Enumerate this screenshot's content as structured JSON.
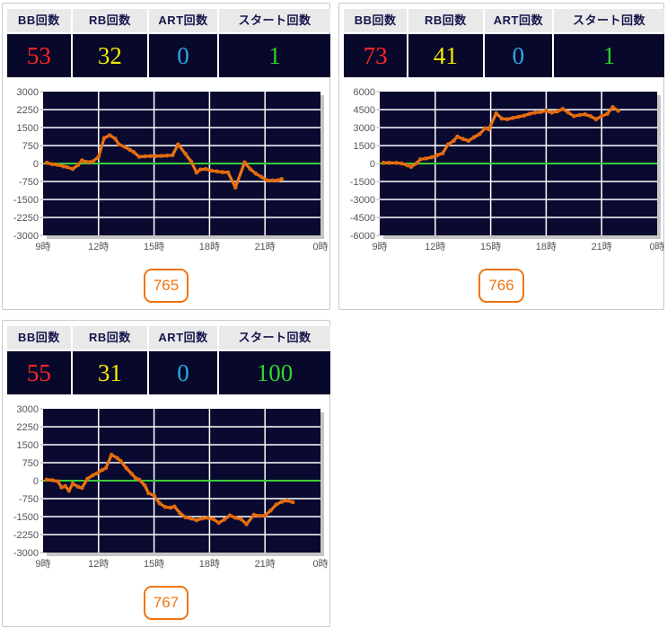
{
  "colors": {
    "bb": "#ff2626",
    "rb": "#f6ea00",
    "art": "#2aa9e2",
    "start": "#2fd42f",
    "badge": "#ef7412",
    "header_text": "#15154d",
    "table_bg": "#08082a"
  },
  "stats_headers": [
    "BB回数",
    "RB回数",
    "ART回数",
    "スタート回数"
  ],
  "panels": [
    {
      "machine_no": "765",
      "bb": "53",
      "rb": "32",
      "art": "0",
      "start": "1"
    },
    {
      "machine_no": "766",
      "bb": "73",
      "rb": "41",
      "art": "0",
      "start": "1"
    },
    {
      "machine_no": "767",
      "bb": "55",
      "rb": "31",
      "art": "0",
      "start": "100"
    }
  ],
  "chart_style": {
    "bg": "#0a0a30",
    "grid": "#ffffff",
    "zero": "#3ace3a",
    "line": "#ef7412",
    "marker": "#e2680d",
    "shadow": "#c6c6c6",
    "tick": "#aaaaaa"
  },
  "chart_data": [
    {
      "type": "line",
      "machine_no": "765",
      "x_range": [
        9,
        24
      ],
      "x_tick_hours": [
        9,
        12,
        15,
        18,
        21,
        24
      ],
      "x_tick_labels": [
        "9時",
        "12時",
        "15時",
        "18時",
        "21時",
        "0時"
      ],
      "ylim": [
        -3000,
        3000
      ],
      "y_ticks": [
        3000,
        2250,
        1500,
        750,
        0,
        -750,
        -1500,
        -2250,
        -3000
      ],
      "grid": true,
      "points": [
        [
          9.2,
          30
        ],
        [
          9.5,
          -30
        ],
        [
          9.8,
          -60
        ],
        [
          10.1,
          -120
        ],
        [
          10.3,
          -150
        ],
        [
          10.6,
          -230
        ],
        [
          10.9,
          -60
        ],
        [
          11.1,
          130
        ],
        [
          11.4,
          60
        ],
        [
          11.7,
          90
        ],
        [
          12.0,
          280
        ],
        [
          12.3,
          1060
        ],
        [
          12.6,
          1180
        ],
        [
          12.9,
          1040
        ],
        [
          13.1,
          800
        ],
        [
          13.4,
          700
        ],
        [
          13.7,
          570
        ],
        [
          13.9,
          480
        ],
        [
          14.2,
          280
        ],
        [
          14.5,
          300
        ],
        [
          14.8,
          310
        ],
        [
          15.1,
          310
        ],
        [
          15.4,
          320
        ],
        [
          15.7,
          330
        ],
        [
          16.0,
          350
        ],
        [
          16.3,
          800
        ],
        [
          16.7,
          400
        ],
        [
          17.0,
          90
        ],
        [
          17.3,
          -380
        ],
        [
          17.5,
          -250
        ],
        [
          17.8,
          -230
        ],
        [
          18.1,
          -300
        ],
        [
          18.4,
          -330
        ],
        [
          18.7,
          -360
        ],
        [
          19.0,
          -370
        ],
        [
          19.4,
          -1000
        ],
        [
          19.9,
          50
        ],
        [
          20.2,
          -230
        ],
        [
          20.5,
          -420
        ],
        [
          20.8,
          -560
        ],
        [
          21.1,
          -700
        ],
        [
          21.4,
          -710
        ],
        [
          21.7,
          -700
        ],
        [
          21.9,
          -650
        ]
      ]
    },
    {
      "type": "line",
      "machine_no": "766",
      "x_range": [
        9,
        24
      ],
      "x_tick_hours": [
        9,
        12,
        15,
        18,
        21,
        24
      ],
      "x_tick_labels": [
        "9時",
        "12時",
        "15時",
        "18時",
        "21時",
        "0時"
      ],
      "ylim": [
        -6000,
        6000
      ],
      "y_ticks": [
        6000,
        4500,
        3000,
        1500,
        0,
        -1500,
        -3000,
        -4500,
        -6000
      ],
      "grid": true,
      "points": [
        [
          9.2,
          60
        ],
        [
          9.5,
          60
        ],
        [
          9.9,
          50
        ],
        [
          10.2,
          0
        ],
        [
          10.5,
          -150
        ],
        [
          10.7,
          -280
        ],
        [
          11.0,
          30
        ],
        [
          11.2,
          350
        ],
        [
          11.5,
          420
        ],
        [
          11.8,
          520
        ],
        [
          12.1,
          700
        ],
        [
          12.4,
          850
        ],
        [
          12.7,
          1600
        ],
        [
          13.0,
          1900
        ],
        [
          13.2,
          2250
        ],
        [
          13.5,
          2050
        ],
        [
          13.8,
          1900
        ],
        [
          14.1,
          2200
        ],
        [
          14.4,
          2450
        ],
        [
          14.7,
          2950
        ],
        [
          14.9,
          2850
        ],
        [
          15.3,
          4200
        ],
        [
          15.6,
          3750
        ],
        [
          15.9,
          3700
        ],
        [
          16.2,
          3800
        ],
        [
          16.5,
          3900
        ],
        [
          16.8,
          4000
        ],
        [
          17.1,
          4150
        ],
        [
          17.4,
          4250
        ],
        [
          17.7,
          4300
        ],
        [
          18.0,
          4400
        ],
        [
          18.3,
          4250
        ],
        [
          18.6,
          4350
        ],
        [
          18.9,
          4550
        ],
        [
          19.2,
          4250
        ],
        [
          19.5,
          3950
        ],
        [
          19.8,
          4050
        ],
        [
          20.1,
          4100
        ],
        [
          20.4,
          3950
        ],
        [
          20.7,
          3700
        ],
        [
          21.0,
          3950
        ],
        [
          21.3,
          4150
        ],
        [
          21.6,
          4700
        ],
        [
          21.9,
          4400
        ]
      ]
    },
    {
      "type": "line",
      "machine_no": "767",
      "x_range": [
        9,
        24
      ],
      "x_tick_hours": [
        9,
        12,
        15,
        18,
        21,
        24
      ],
      "x_tick_labels": [
        "9時",
        "12時",
        "15時",
        "18時",
        "21時",
        "0時"
      ],
      "ylim": [
        -3000,
        3000
      ],
      "y_ticks": [
        3000,
        2250,
        1500,
        750,
        0,
        -750,
        -1500,
        -2250,
        -3000
      ],
      "grid": true,
      "points": [
        [
          9.2,
          40
        ],
        [
          9.5,
          20
        ],
        [
          9.8,
          -30
        ],
        [
          10.0,
          -280
        ],
        [
          10.2,
          -230
        ],
        [
          10.4,
          -420
        ],
        [
          10.6,
          -120
        ],
        [
          10.9,
          -260
        ],
        [
          11.1,
          -300
        ],
        [
          11.4,
          80
        ],
        [
          11.7,
          230
        ],
        [
          11.9,
          300
        ],
        [
          12.2,
          450
        ],
        [
          12.4,
          530
        ],
        [
          12.7,
          1080
        ],
        [
          13.0,
          950
        ],
        [
          13.2,
          820
        ],
        [
          13.5,
          520
        ],
        [
          13.8,
          280
        ],
        [
          14.0,
          110
        ],
        [
          14.2,
          40
        ],
        [
          14.5,
          -200
        ],
        [
          14.7,
          -520
        ],
        [
          15.0,
          -620
        ],
        [
          15.3,
          -950
        ],
        [
          15.6,
          -1100
        ],
        [
          15.9,
          -1130
        ],
        [
          16.1,
          -1080
        ],
        [
          16.4,
          -1350
        ],
        [
          16.7,
          -1530
        ],
        [
          17.0,
          -1580
        ],
        [
          17.3,
          -1650
        ],
        [
          17.6,
          -1580
        ],
        [
          17.9,
          -1550
        ],
        [
          18.2,
          -1600
        ],
        [
          18.5,
          -1760
        ],
        [
          18.8,
          -1620
        ],
        [
          19.1,
          -1450
        ],
        [
          19.4,
          -1550
        ],
        [
          19.7,
          -1600
        ],
        [
          20.0,
          -1820
        ],
        [
          20.4,
          -1430
        ],
        [
          20.7,
          -1470
        ],
        [
          21.0,
          -1450
        ],
        [
          21.3,
          -1250
        ],
        [
          21.6,
          -1000
        ],
        [
          21.9,
          -880
        ],
        [
          22.2,
          -830
        ],
        [
          22.5,
          -900
        ]
      ]
    }
  ]
}
